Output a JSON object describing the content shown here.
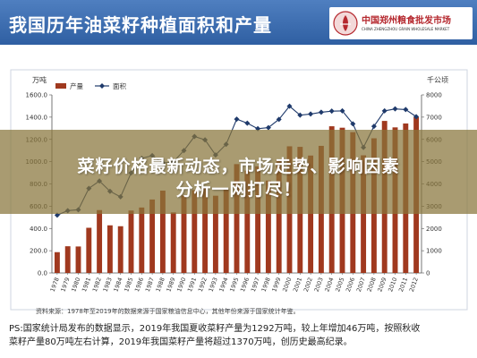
{
  "header": {
    "title": "我国历年油菜籽种植面积和产量"
  },
  "logo": {
    "name_cn": "中国郑州粮食批发市场",
    "name_en": "CHINA ZHENGZHOU GRAIN WHOLESALE MARKET",
    "mark_text": "CZGM"
  },
  "banner": {
    "line1": "菜籽价格最新动态，市场走势、影响因素",
    "line2": "分析一网打尽！"
  },
  "source_text": "资料来源：1978年至2019年的数据来源于国家粮油信息中心，其他年份来源于国家统计年鉴。",
  "note": {
    "line1": "PS:国家统计局发布的数据显示，2019年我国夏收菜籽产量为1292万吨，较上年增加46万吨，按照秋收",
    "line2": "菜籽产量80万吨左右计算，2019年我国菜籽产量将超过1370万吨，创历史最高纪录。"
  },
  "chart_data": {
    "type": "bar",
    "title": "",
    "left_unit": "万吨",
    "right_unit": "千公顷",
    "xlabel": "",
    "ylabel": "",
    "categories": [
      "1978",
      "1979",
      "1980",
      "1981",
      "1982",
      "1983",
      "1984",
      "1985",
      "1986",
      "1987",
      "1988",
      "1989",
      "1990",
      "1991",
      "1992",
      "1993",
      "1994",
      "1995",
      "1996",
      "1997",
      "1998",
      "1999",
      "2000",
      "2001",
      "2002",
      "2003",
      "2004",
      "2005",
      "2006",
      "2007",
      "2008",
      "2009",
      "2010",
      "2011",
      "2012"
    ],
    "ylim": [
      0,
      1600
    ],
    "yticks": [
      "0.0",
      "200.0",
      "400.0",
      "600.0",
      "800.0",
      "1000.0",
      "1200.0",
      "1400.0",
      "1600.0"
    ],
    "y2lim": [
      0,
      8000
    ],
    "y2ticks": [
      "0",
      "1000",
      "2000",
      "3000",
      "4000",
      "5000",
      "6000",
      "7000",
      "8000"
    ],
    "legend_position": "top-left",
    "grid": false,
    "series": [
      {
        "name": "产量",
        "axis": "left",
        "type": "bar",
        "color": "#a0391f",
        "values": [
          187,
          240,
          238,
          406,
          565,
          428,
          420,
          561,
          588,
          660,
          740,
          544,
          696,
          744,
          765,
          694,
          749,
          978,
          920,
          958,
          830,
          1013,
          1138,
          1133,
          1055,
          1142,
          1318,
          1305,
          1265,
          1057,
          1210,
          1366,
          1308,
          1343,
          1401
        ]
      },
      {
        "name": "面积",
        "axis": "right",
        "type": "line",
        "color": "#1f3a6b",
        "values": [
          2600,
          2800,
          2840,
          3800,
          4130,
          3670,
          3420,
          4490,
          5150,
          5270,
          4940,
          4990,
          5500,
          6130,
          5980,
          5300,
          5780,
          6910,
          6730,
          6480,
          6530,
          6900,
          7490,
          7090,
          7140,
          7220,
          7270,
          7280,
          6700,
          5640,
          6590,
          7280,
          7370,
          7340,
          7020
        ]
      }
    ]
  }
}
